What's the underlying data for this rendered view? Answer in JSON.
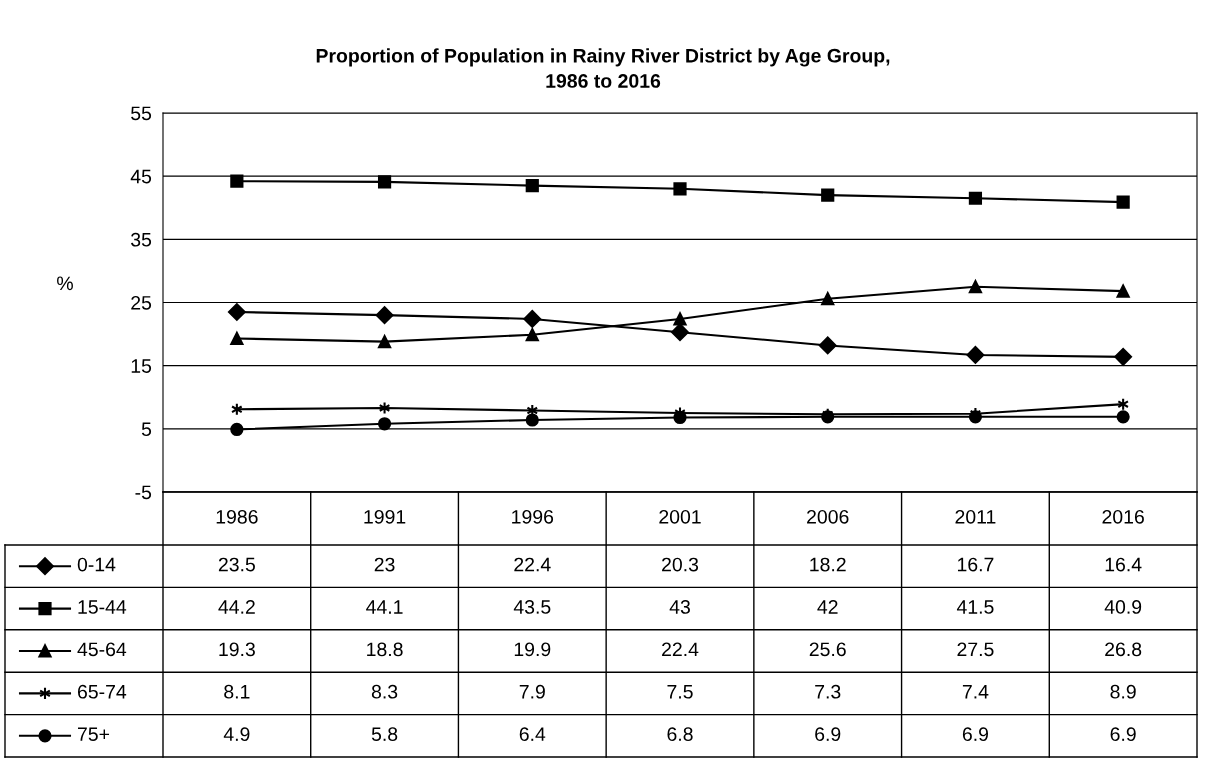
{
  "chart_data": {
    "type": "line",
    "title": "Proportion of Population in Rainy River District by Age Group,\n1986 to 2016",
    "ylabel": "%",
    "categories": [
      "1986",
      "1991",
      "1996",
      "2001",
      "2006",
      "2011",
      "2016"
    ],
    "series": [
      {
        "name": "0-14",
        "color": "#000000",
        "marker": "diamond",
        "values": [
          23.5,
          23,
          22.4,
          20.3,
          18.2,
          16.7,
          16.4
        ]
      },
      {
        "name": "15-44",
        "color": "#000000",
        "marker": "square",
        "values": [
          44.2,
          44.1,
          43.5,
          43,
          42,
          41.5,
          40.9
        ]
      },
      {
        "name": "45-64",
        "color": "#000000",
        "marker": "triangle",
        "values": [
          19.3,
          18.8,
          19.9,
          22.4,
          25.6,
          27.5,
          26.8
        ]
      },
      {
        "name": "65-74",
        "color": "#000000",
        "marker": "cross",
        "values": [
          8.1,
          8.3,
          7.9,
          7.5,
          7.3,
          7.4,
          8.9
        ]
      },
      {
        "name": "75+",
        "color": "#000000",
        "marker": "circle",
        "values": [
          4.9,
          5.8,
          6.4,
          6.8,
          6.9,
          6.9,
          6.9
        ]
      }
    ],
    "ylim": [
      -5,
      55
    ],
    "yticks": [
      -5,
      5,
      15,
      25,
      35,
      45,
      55
    ],
    "grid": "y",
    "data_labels": true,
    "legend": "bottom left",
    "line_style": "solid"
  }
}
